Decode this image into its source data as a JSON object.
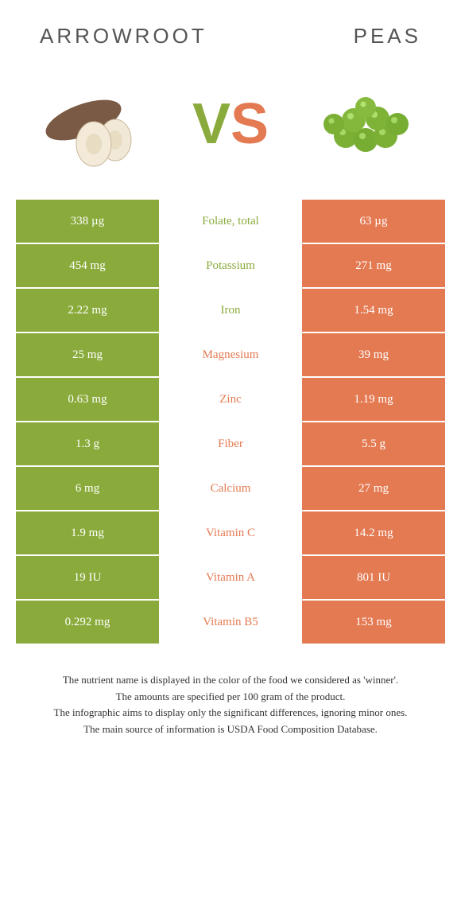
{
  "titles": {
    "left": "ARROWROOT",
    "right": "PEAS"
  },
  "vs": {
    "v": "V",
    "s": "S"
  },
  "colors": {
    "green": "#8aab3b",
    "orange": "#e47a52",
    "white": "#ffffff"
  },
  "rows": [
    {
      "left": "338 µg",
      "mid": "Folate, total",
      "right": "63 µg",
      "winner": "left"
    },
    {
      "left": "454 mg",
      "mid": "Potassium",
      "right": "271 mg",
      "winner": "left"
    },
    {
      "left": "2.22 mg",
      "mid": "Iron",
      "right": "1.54 mg",
      "winner": "left"
    },
    {
      "left": "25 mg",
      "mid": "Magnesium",
      "right": "39 mg",
      "winner": "right"
    },
    {
      "left": "0.63 mg",
      "mid": "Zinc",
      "right": "1.19 mg",
      "winner": "right"
    },
    {
      "left": "1.3 g",
      "mid": "Fiber",
      "right": "5.5 g",
      "winner": "right"
    },
    {
      "left": "6 mg",
      "mid": "Calcium",
      "right": "27 mg",
      "winner": "right"
    },
    {
      "left": "1.9 mg",
      "mid": "Vitamin C",
      "right": "14.2 mg",
      "winner": "right"
    },
    {
      "left": "19 IU",
      "mid": "Vitamin A",
      "right": "801 IU",
      "winner": "right"
    },
    {
      "left": "0.292 mg",
      "mid": "Vitamin B5",
      "right": "153 mg",
      "winner": "right"
    }
  ],
  "footnotes": {
    "l1": "The nutrient name is displayed in the color of the food we considered as 'winner'.",
    "l2": "The amounts are specified per 100 gram of the product.",
    "l3": "The infographic aims to display only the significant differences, ignoring minor ones.",
    "l4": "The main source of information is USDA Food Composition Database."
  }
}
